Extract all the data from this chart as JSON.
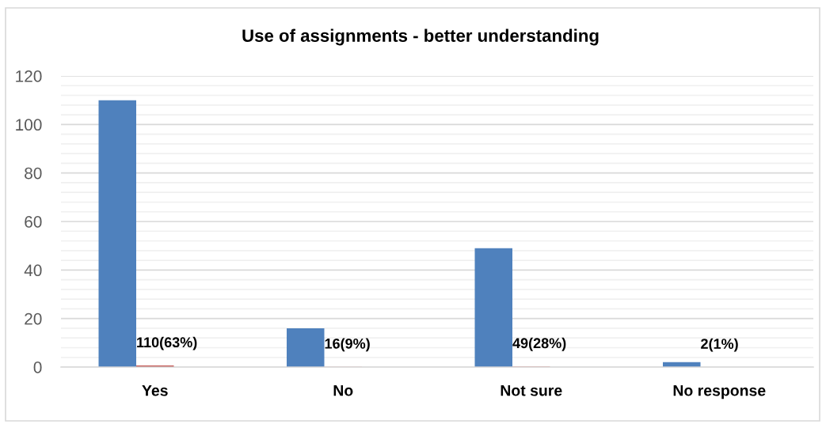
{
  "chart_data": {
    "type": "bar",
    "title": "Use of assignments - better understanding",
    "categories": [
      "Yes",
      "No",
      "Not sure",
      "No response"
    ],
    "series": [
      {
        "color": "#4f81bd",
        "values": [
          110,
          16,
          49,
          2
        ]
      },
      {
        "color": "#c0504d",
        "values": [
          0.63,
          0.09,
          0.28,
          0.01
        ],
        "value_labels": [
          "110(63%)",
          "16(9%)",
          "49(28%)",
          "2(1%)"
        ]
      }
    ],
    "ylim": [
      0,
      120
    ],
    "yticks": [
      0,
      {
        "value": 4,
        "label": null
      },
      {
        "value": 8,
        "label": null
      },
      {
        "value": 12,
        "label": null
      },
      {
        "value": 16,
        "label": null
      },
      20,
      {
        "value": 24,
        "label": null
      },
      {
        "value": 28,
        "label": null
      },
      {
        "value": 32,
        "label": null
      },
      {
        "value": 36,
        "label": null
      },
      40,
      {
        "value": 44,
        "label": null
      },
      {
        "value": 48,
        "label": null
      },
      {
        "value": 52,
        "label": null
      },
      {
        "value": 56,
        "label": null
      },
      60,
      {
        "value": 64,
        "label": null
      },
      {
        "value": 68,
        "label": null
      },
      {
        "value": 72,
        "label": null
      },
      {
        "value": 76,
        "label": null
      },
      80,
      {
        "value": 84,
        "label": null
      },
      {
        "value": 88,
        "label": null
      },
      {
        "value": 92,
        "label": null
      },
      {
        "value": 96,
        "label": null
      },
      100,
      {
        "value": 104,
        "label": null
      },
      {
        "value": 108,
        "label": null
      },
      {
        "value": 112,
        "label": null
      },
      {
        "value": 116,
        "label": null
      },
      120
    ],
    "grid": "y"
  }
}
